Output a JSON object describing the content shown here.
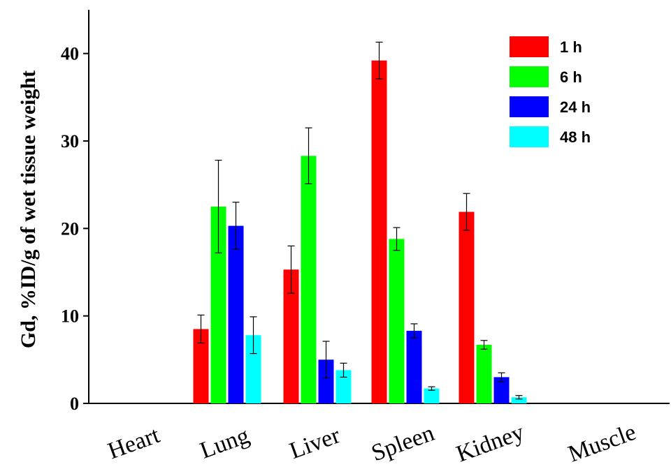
{
  "chart_data": {
    "type": "bar",
    "title": "",
    "xlabel": "",
    "ylabel": "Gd, %ID/g of wet tissue weight",
    "ylim": [
      0,
      45
    ],
    "yticks": [
      0,
      10,
      20,
      30,
      40
    ],
    "categories": [
      "Heart",
      "Lung",
      "Liver",
      "Spleen",
      "Kidney",
      "Muscle"
    ],
    "series": [
      {
        "name": "1 h",
        "color": "#ff0000",
        "values": [
          null,
          8.5,
          15.3,
          39.2,
          21.9,
          null
        ],
        "errors": [
          null,
          1.6,
          2.7,
          2.1,
          2.1,
          null
        ]
      },
      {
        "name": "6 h",
        "color": "#00ff00",
        "values": [
          null,
          22.5,
          28.3,
          18.8,
          6.7,
          null
        ],
        "errors": [
          null,
          5.3,
          3.2,
          1.3,
          0.5,
          null
        ]
      },
      {
        "name": "24 h",
        "color": "#0000ff",
        "values": [
          null,
          20.3,
          5.0,
          8.3,
          3.0,
          null
        ],
        "errors": [
          null,
          2.7,
          2.1,
          0.8,
          0.5,
          null
        ]
      },
      {
        "name": "48 h",
        "color": "#00ffff",
        "values": [
          null,
          7.8,
          3.8,
          1.7,
          0.7,
          null
        ],
        "errors": [
          null,
          2.1,
          0.8,
          0.2,
          0.2,
          null
        ]
      }
    ],
    "grid": false,
    "legend_position": "top-right"
  }
}
